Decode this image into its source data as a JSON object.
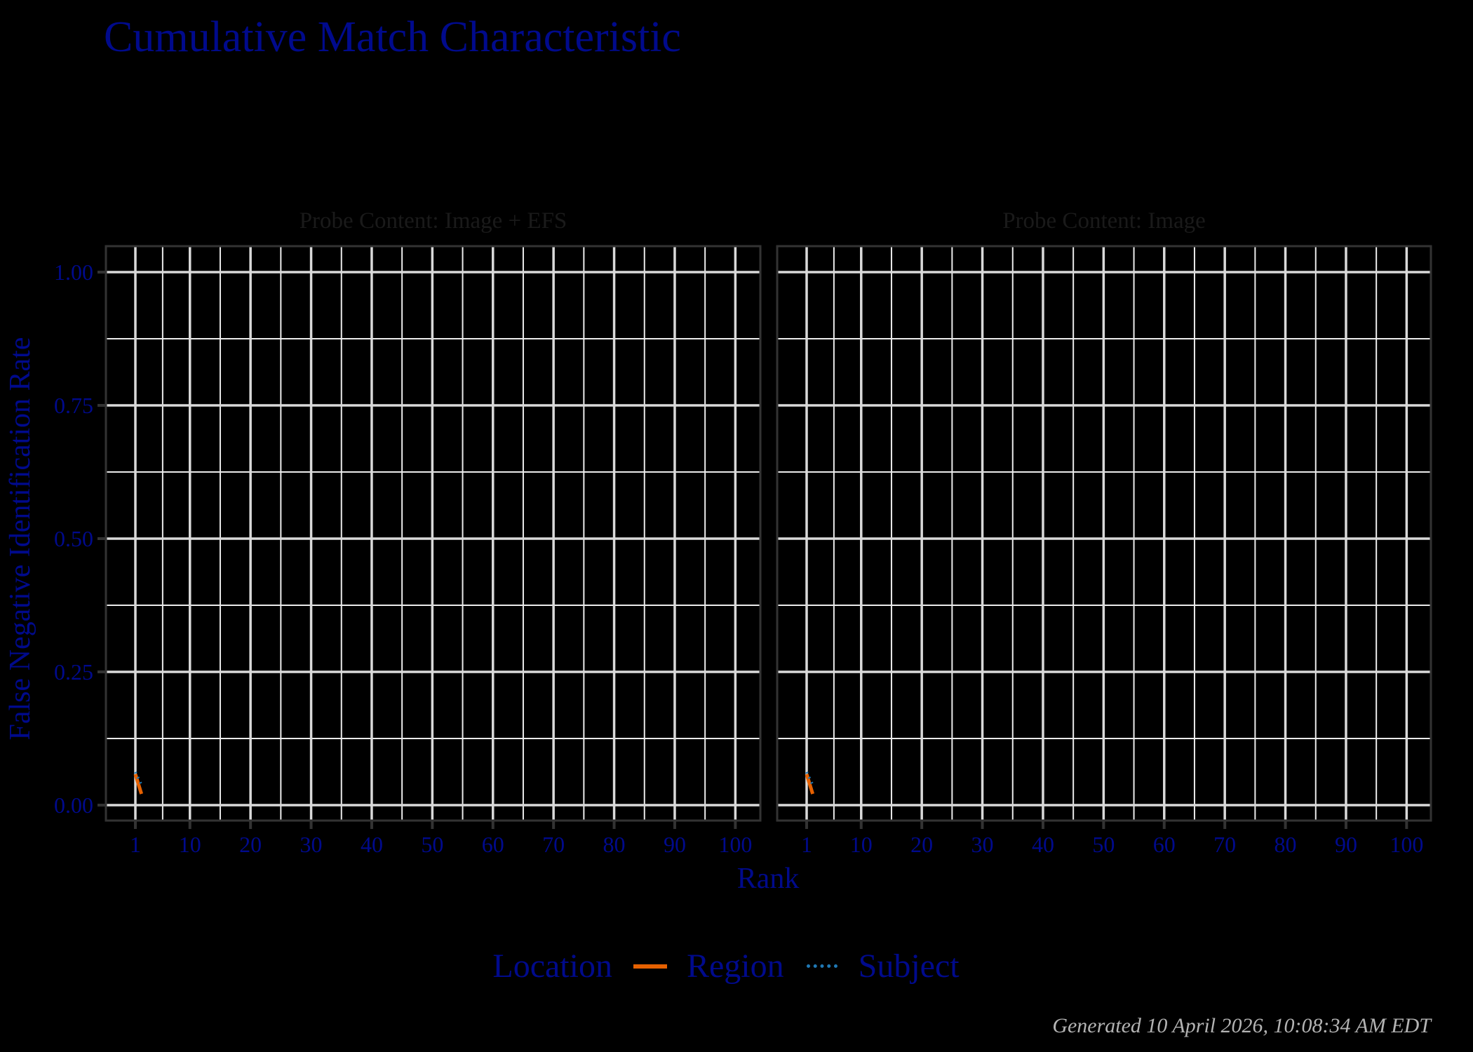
{
  "chart_data": {
    "type": "line",
    "title": "Cumulative Match Characteristic",
    "xlabel": "Rank",
    "ylabel": "False Negative Identification Rate",
    "xlim": [
      1,
      100
    ],
    "ylim": [
      0,
      1
    ],
    "x_ticks": [
      "1",
      "10",
      "20",
      "30",
      "40",
      "50",
      "60",
      "70",
      "80",
      "90",
      "100"
    ],
    "y_ticks": [
      "0.00",
      "0.25",
      "0.50",
      "0.75",
      "1.00"
    ],
    "grid": true,
    "legend": {
      "title": "Location",
      "position": "bottom",
      "entries": [
        {
          "name": "Region",
          "style": "solid",
          "color": "#e66101"
        },
        {
          "name": "Subject",
          "style": "dotted",
          "color": "#1f78b4"
        }
      ]
    },
    "facets": [
      {
        "label": "Probe Content: Image + EFS",
        "series": [
          {
            "name": "Region",
            "x": [
              1,
              2
            ],
            "values": [
              0.058,
              0.021
            ]
          },
          {
            "name": "Subject",
            "x": [
              1,
              2
            ],
            "values": [
              0.062,
              0.038
            ]
          }
        ]
      },
      {
        "label": "Probe Content: Image",
        "series": [
          {
            "name": "Region",
            "x": [
              1,
              2
            ],
            "values": [
              0.058,
              0.021
            ]
          },
          {
            "name": "Subject",
            "x": [
              1,
              2
            ],
            "values": [
              0.062,
              0.038
            ]
          }
        ]
      }
    ]
  },
  "header": {
    "title": "Cumulative Match Characteristic"
  },
  "axes": {
    "xlabel": "Rank",
    "ylabel": "False Negative Identification Rate"
  },
  "legend": {
    "title": "Location",
    "region_label": "Region",
    "subject_label": "Subject"
  },
  "footer": {
    "generated": "Generated 10 April 2026, 10:08:34 AM EDT"
  },
  "colors": {
    "text": "#000a8c",
    "strip_text": "#1a1a1a",
    "region": "#e66101",
    "subject": "#1f78b4",
    "grid_major": "#d9d9d9",
    "grid_minor": "#ebebeb",
    "panel_border": "#333333",
    "footer": "#b3b3b3"
  }
}
